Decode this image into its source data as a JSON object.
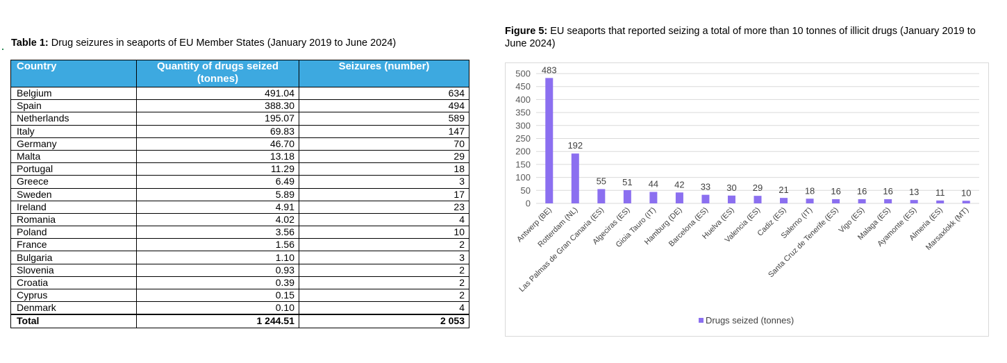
{
  "table": {
    "caption_bold": "Table 1:",
    "caption_text": " Drug seizures in seaports of EU Member States (January 2019 to June 2024)",
    "headers": {
      "country": "Country",
      "quantity": "Quantity of drugs seized (tonnes)",
      "seizures": "Seizures (number)"
    },
    "rows": [
      {
        "country": "Belgium",
        "quantity": "491.04",
        "seizures": "634"
      },
      {
        "country": "Spain",
        "quantity": "388.30",
        "seizures": "494"
      },
      {
        "country": "Netherlands",
        "quantity": "195.07",
        "seizures": "589"
      },
      {
        "country": "Italy",
        "quantity": "69.83",
        "seizures": "147"
      },
      {
        "country": "Germany",
        "quantity": "46.70",
        "seizures": "70"
      },
      {
        "country": "Malta",
        "quantity": "13.18",
        "seizures": "29"
      },
      {
        "country": "Portugal",
        "quantity": "11.29",
        "seizures": "18"
      },
      {
        "country": "Greece",
        "quantity": "6.49",
        "seizures": "3"
      },
      {
        "country": "Sweden",
        "quantity": "5.89",
        "seizures": "17"
      },
      {
        "country": "Ireland",
        "quantity": "4.91",
        "seizures": "23"
      },
      {
        "country": "Romania",
        "quantity": "4.02",
        "seizures": "4"
      },
      {
        "country": "Poland",
        "quantity": "3.56",
        "seizures": "10"
      },
      {
        "country": "France",
        "quantity": "1.56",
        "seizures": "2"
      },
      {
        "country": "Bulgaria",
        "quantity": "1.10",
        "seizures": "3"
      },
      {
        "country": "Slovenia",
        "quantity": "0.93",
        "seizures": "2"
      },
      {
        "country": "Croatia",
        "quantity": "0.39",
        "seizures": "2"
      },
      {
        "country": "Cyprus",
        "quantity": "0.15",
        "seizures": "2"
      },
      {
        "country": "Denmark",
        "quantity": "0.10",
        "seizures": "4"
      }
    ],
    "total": {
      "label": "Total",
      "quantity": "1 244.51",
      "seizures": "2 053"
    }
  },
  "figure": {
    "caption_bold": "Figure 5:",
    "caption_text": " EU seaports that reported seizing a total of more than 10 tonnes of illicit drugs (January 2019 to June 2024)"
  },
  "chart_data": {
    "type": "bar",
    "categories": [
      "Antwerp (BE)",
      "Rotterdam (NL)",
      "Las Palmas de Gran Canaria (ES)",
      "Algeciras (ES)",
      "Gioia Tauro (IT)",
      "Hamburg (DE)",
      "Barcelona (ES)",
      "Huelva (ES)",
      "Valencia (ES)",
      "Cadiz (ES)",
      "Salerno (IT)",
      "Santa Cruz de Tenerife (ES)",
      "Vigo (ES)",
      "Malaga (ES)",
      "Ayamonte (ES)",
      "Almeria (ES)",
      "Marsaxlokk (MT)"
    ],
    "series": [
      {
        "name": "Drugs seized (tonnes)",
        "values": [
          483,
          192,
          55,
          51,
          44,
          42,
          33,
          30,
          29,
          21,
          18,
          16,
          16,
          16,
          13,
          11,
          10
        ]
      }
    ],
    "yticks": [
      "0",
      "50",
      "100",
      "150",
      "200",
      "250",
      "300",
      "350",
      "400",
      "450",
      "500"
    ],
    "ylim": [
      0,
      500
    ],
    "grid": true,
    "legend_position": "bottom",
    "bar_color": "#8b6ff0"
  }
}
